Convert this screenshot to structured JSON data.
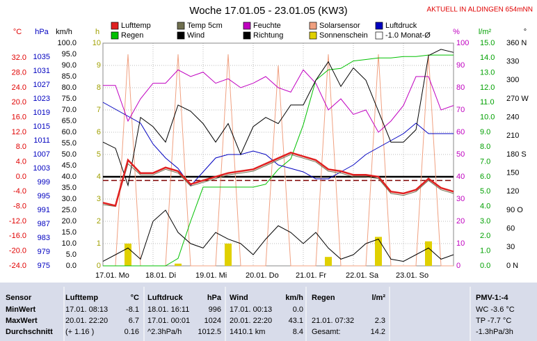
{
  "chart_data": {
    "type": "line",
    "title": "Woche 17.01.05 - 23.01.05 (KW3)",
    "subtitle": "AKTUELL IN ALDINGEN 654mNN",
    "x_labels": [
      "17.01. Mo",
      "18.01. Di",
      "19.01. Mi",
      "20.01. Do",
      "21.01. Fr",
      "22.01. Sa",
      "23.01. So"
    ],
    "axes": [
      {
        "unit": "°C",
        "color": "#e00000",
        "lim": [
          -24,
          36
        ],
        "ticks": [
          {
            "value": -24,
            "label": "-24.0"
          },
          {
            "value": -20,
            "label": "-20.0"
          },
          {
            "value": -16,
            "label": "-16.0"
          },
          {
            "value": -12,
            "label": "-12.0"
          },
          {
            "value": -8,
            "label": "-8.0"
          },
          {
            "value": -4,
            "label": "-4.0"
          },
          {
            "value": 0,
            "label": "0.0"
          },
          {
            "value": 4,
            "label": "4.0"
          },
          {
            "value": 8,
            "label": "8.0"
          },
          {
            "value": 12,
            "label": "12.0"
          },
          {
            "value": 16,
            "label": "16.0"
          },
          {
            "value": 20,
            "label": "20.0"
          },
          {
            "value": 24,
            "label": "24.0"
          },
          {
            "value": 28,
            "label": "28.0"
          },
          {
            "value": 32,
            "label": "32.0"
          }
        ]
      },
      {
        "unit": "hPa",
        "color": "#0000c0",
        "lim": [
          975,
          1039
        ],
        "ticks": [
          975,
          979,
          983,
          987,
          991,
          995,
          999,
          1003,
          1007,
          1011,
          1015,
          1019,
          1023,
          1027,
          1031,
          1035
        ]
      },
      {
        "unit": "km/h",
        "color": "#000000",
        "lim": [
          0,
          100
        ],
        "ticks": [
          {
            "value": 0,
            "label": "0.0"
          },
          {
            "value": 5,
            "label": "5.0"
          },
          {
            "value": 10,
            "label": "10.0"
          },
          {
            "value": 15,
            "label": "15.0"
          },
          {
            "value": 20,
            "label": "20.0"
          },
          {
            "value": 25,
            "label": "25.0"
          },
          {
            "value": 30,
            "label": "30.0"
          },
          {
            "value": 35,
            "label": "35.0"
          },
          {
            "value": 40,
            "label": "40.0"
          },
          {
            "value": 45,
            "label": "45.0"
          },
          {
            "value": 50,
            "label": "50.0"
          },
          {
            "value": 55,
            "label": "55.0"
          },
          {
            "value": 60,
            "label": "60.0"
          },
          {
            "value": 65,
            "label": "65.0"
          },
          {
            "value": 70,
            "label": "70.0"
          },
          {
            "value": 75,
            "label": "75.0"
          },
          {
            "value": 80,
            "label": "80.0"
          },
          {
            "value": 85,
            "label": "85.0"
          },
          {
            "value": 90,
            "label": "90.0"
          },
          {
            "value": 95,
            "label": "95.0"
          },
          {
            "value": 100,
            "label": "100.0"
          }
        ]
      },
      {
        "unit": "h",
        "color": "#a0a000",
        "lim": [
          0,
          10
        ],
        "ticks": [
          0,
          1,
          2,
          3,
          4,
          5,
          6,
          7,
          8,
          9,
          10
        ]
      },
      {
        "unit": "%",
        "color": "#c000c0",
        "lim": [
          0,
          100
        ],
        "ticks": [
          0,
          10,
          20,
          30,
          40,
          50,
          60,
          70,
          80,
          90,
          100
        ]
      },
      {
        "unit": "l/m²",
        "color": "#00a000",
        "lim": [
          0,
          15
        ],
        "ticks": [
          {
            "value": 0,
            "label": "0.0"
          },
          {
            "value": 1,
            "label": "1.0"
          },
          {
            "value": 2,
            "label": "2.0"
          },
          {
            "value": 3,
            "label": "3.0"
          },
          {
            "value": 4,
            "label": "4.0"
          },
          {
            "value": 5,
            "label": "5.0"
          },
          {
            "value": 6,
            "label": "6.0"
          },
          {
            "value": 7,
            "label": "7.0"
          },
          {
            "value": 8,
            "label": "8.0"
          },
          {
            "value": 9,
            "label": "9.0"
          },
          {
            "value": 10,
            "label": "10.0"
          },
          {
            "value": 11,
            "label": "11.0"
          },
          {
            "value": 12,
            "label": "12.0"
          },
          {
            "value": 13,
            "label": "13.0"
          },
          {
            "value": 14,
            "label": "14.0"
          },
          {
            "value": 15,
            "label": "15.0"
          }
        ]
      },
      {
        "unit": "°",
        "color": "#000000",
        "lim": [
          0,
          360
        ],
        "ticks": [
          {
            "value": 0,
            "label": "0 N"
          },
          30,
          60,
          {
            "value": 90,
            "label": "90 O"
          },
          120,
          150,
          {
            "value": 180,
            "label": "180 S"
          },
          210,
          240,
          {
            "value": 270,
            "label": "270 W"
          },
          300,
          330,
          {
            "value": 360,
            "label": "360 N"
          }
        ]
      }
    ],
    "series": [
      {
        "name": "Lufttemp",
        "color": "#e02020",
        "axis": 0,
        "width": 2.5,
        "values": [
          -7,
          -7.8,
          4.5,
          1,
          1,
          2.5,
          1.5,
          -2,
          -1,
          0,
          1,
          1.5,
          2,
          3.5,
          5,
          6.5,
          5.5,
          4.5,
          2,
          1.5,
          0.5,
          0.5,
          0,
          -4,
          -4.5,
          -3.5,
          -0.5,
          -3,
          -4
        ]
      },
      {
        "name": "Temp 5cm",
        "color": "#707050",
        "axis": 0,
        "width": 1,
        "values": [
          -7.5,
          -8,
          3.5,
          0.5,
          0.5,
          2,
          1,
          -2.5,
          -1.5,
          -0.5,
          0.5,
          1,
          1.5,
          3,
          4.5,
          6,
          5,
          4,
          1.5,
          1,
          0,
          0,
          -0.5,
          -4.5,
          -5,
          -4,
          -1,
          -3.5,
          -4.5
        ]
      },
      {
        "name": "Feuchte",
        "color": "#c000c0",
        "axis": 4,
        "width": 1,
        "values": [
          81,
          81,
          65,
          75,
          82,
          82,
          88,
          85,
          87,
          82,
          84,
          80,
          82,
          85,
          80,
          78,
          88,
          82,
          70,
          75,
          68,
          70,
          60,
          65,
          72,
          85,
          85,
          70,
          72
        ]
      },
      {
        "name": "Solarsensor",
        "color": "#f0a080",
        "axis": 4,
        "width": 1,
        "values": [
          0,
          0,
          95,
          0,
          0,
          0,
          95,
          0,
          0,
          0,
          95,
          0,
          0,
          0,
          90,
          0,
          0,
          0,
          95,
          0,
          0,
          0,
          95,
          0,
          0,
          0,
          95,
          0,
          0
        ]
      },
      {
        "name": "Luftdruck",
        "color": "#0000c0",
        "axis": 1,
        "width": 1,
        "values": [
          1022,
          1020,
          1018,
          1016,
          1010,
          1006,
          1003,
          998,
          1002,
          1006,
          1007,
          1007,
          1008,
          1007,
          1004,
          1003,
          1002,
          1000,
          1000,
          1002,
          1004,
          1007,
          1009,
          1011,
          1013,
          1016,
          1013,
          1013,
          1013
        ]
      },
      {
        "name": "Regen",
        "color": "#00c000",
        "axis": 5,
        "width": 1,
        "values": [
          0,
          0,
          0,
          0,
          0,
          0,
          0.5,
          3,
          5.3,
          5.3,
          5.3,
          5.3,
          5.3,
          5.5,
          6.5,
          7.2,
          9.5,
          12.5,
          13.2,
          13.3,
          13.8,
          13.9,
          14,
          14,
          14.1,
          14.1,
          14.2,
          14.2,
          14.2
        ]
      },
      {
        "name": "Wind",
        "color": "#000000",
        "axis": 2,
        "width": 1,
        "values": [
          2,
          5,
          8,
          3,
          20,
          25,
          15,
          10,
          8,
          15,
          12,
          10,
          5,
          12,
          18,
          15,
          10,
          15,
          8,
          3,
          5,
          10,
          12,
          3,
          2,
          5,
          8,
          3,
          5
        ]
      },
      {
        "name": "Richtung",
        "color": "#000000",
        "axis": 6,
        "width": 1,
        "values": [
          200,
          190,
          130,
          240,
          225,
          200,
          260,
          250,
          230,
          200,
          230,
          180,
          225,
          240,
          230,
          260,
          260,
          300,
          330,
          290,
          320,
          300,
          250,
          200,
          200,
          220,
          340,
          350,
          345
        ]
      },
      {
        "name": "Sonnenschein",
        "type": "bar",
        "color": "#e0d000",
        "axis": 3,
        "values": [
          0,
          0,
          1,
          0,
          0,
          0,
          0.1,
          0,
          0,
          0,
          1,
          0,
          0,
          0,
          0,
          0,
          0,
          0,
          0.4,
          0,
          0,
          0,
          1.3,
          0,
          0,
          0,
          1.1,
          0,
          0
        ]
      }
    ],
    "reference": {
      "name": "-1.0 Monat-Ø",
      "value": -1.0,
      "axis": 0,
      "color": "#800000"
    }
  },
  "table": {
    "sensor": [
      "Sensor",
      "MinWert",
      "MaxWert",
      "Durchschnitt"
    ],
    "groups": [
      {
        "name": "Lufttemp",
        "unit": "°C",
        "rows": [
          [
            "17.01. 08:13",
            "-8.1"
          ],
          [
            "20.01. 22:20",
            "6.7"
          ],
          [
            "(+ 1.16 )",
            "0.16"
          ]
        ]
      },
      {
        "name": "Luftdruck",
        "unit": "hPa",
        "rows": [
          [
            "18.01. 16:11",
            "996"
          ],
          [
            "17.01. 00:01",
            "1024"
          ],
          [
            "^2.3hPa/h",
            "1012.5"
          ]
        ]
      },
      {
        "name": "Wind",
        "unit": "km/h",
        "rows": [
          [
            "17.01. 00:13",
            "0.0"
          ],
          [
            "20.01. 22:20",
            "43.1"
          ],
          [
            "1410.1 km",
            "8.4"
          ]
        ]
      },
      {
        "name": "Regen",
        "unit": "l/m²",
        "rows": [
          null,
          [
            "21.01. 07:32",
            "2.3"
          ],
          [
            "Gesamt:",
            "14.2"
          ]
        ]
      }
    ],
    "pmv": {
      "title": "PMV-1:-4",
      "rows": [
        "WC -3.6 °C",
        "TP -7.7 °C",
        "-1.3hPa/3h"
      ]
    }
  }
}
